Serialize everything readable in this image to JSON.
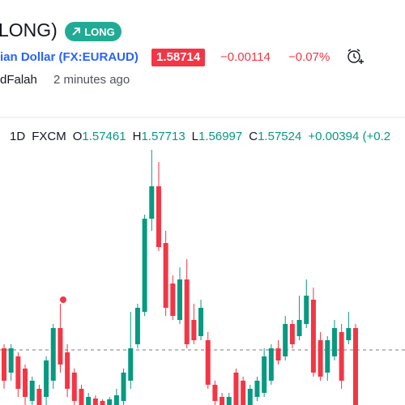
{
  "header": {
    "title": "LONG)",
    "badge": "LONG",
    "symbol": "ian Dollar (FX:EURAUD)",
    "price": 1.58714,
    "change": "−0.00114",
    "change_percent": "−0.07%",
    "author": "dFalah",
    "time": "2 minutes ago"
  },
  "chart_data": {
    "type": "candlestick",
    "interval": "1D",
    "source": "FXCM",
    "legend": {
      "o_label": "O",
      "o": 1.57461,
      "h_label": "H",
      "h": 1.57713,
      "l_label": "L",
      "l": 1.56997,
      "c_label": "C",
      "c": 1.57524,
      "change": "+0.00394 (+0.2"
    },
    "up_color": "#089981",
    "down_color": "#f23645",
    "ylim": [
      1.57354,
      1.63654
    ],
    "open": [
      1.58754,
      1.58154,
      1.58554,
      1.58254,
      1.57454,
      1.57754,
      1.57554,
      1.57954,
      1.59254,
      1.58654,
      1.58154,
      1.57754,
      1.57354,
      1.57514,
      1.57454,
      1.57354,
      1.57354,
      1.57454,
      1.57954,
      1.58854,
      1.59654,
      1.61954,
      1.62754,
      1.61354,
      1.60354,
      1.59454,
      1.60454,
      1.59454,
      1.59054,
      1.58954,
      1.57854,
      1.57554,
      1.57354,
      1.58154,
      1.57954,
      1.57354,
      1.57554,
      1.57654,
      1.57954,
      1.58754,
      1.58554,
      1.59354,
      1.59054,
      1.59354,
      1.59954,
      1.58954,
      1.58154,
      1.58554,
      1.59154,
      1.58954,
      1.59254
    ],
    "high": [
      1.58854,
      1.58854,
      1.58654,
      1.58354,
      1.58054,
      1.57854,
      1.58554,
      1.59354,
      1.59854,
      1.58854,
      1.58254,
      1.57854,
      1.57654,
      1.57594,
      1.57494,
      1.57554,
      1.57754,
      1.58254,
      1.59654,
      1.59854,
      1.62054,
      1.63654,
      1.63354,
      1.61654,
      1.60554,
      1.60754,
      1.60954,
      1.59854,
      1.59954,
      1.59154,
      1.57954,
      1.57654,
      1.57654,
      1.58254,
      1.58054,
      1.57854,
      1.58054,
      1.58754,
      1.58854,
      1.58954,
      1.59554,
      1.59454,
      1.60054,
      1.60454,
      1.60254,
      1.59154,
      1.59054,
      1.59454,
      1.59354,
      1.59654,
      1.59354
    ],
    "low": [
      1.57754,
      1.57954,
      1.57554,
      1.57354,
      1.57354,
      1.57354,
      1.57354,
      1.57754,
      1.58154,
      1.57554,
      1.57354,
      1.57354,
      1.57354,
      1.57354,
      1.57354,
      1.57354,
      1.57354,
      1.57354,
      1.57754,
      1.58754,
      1.59554,
      1.61654,
      1.61154,
      1.59554,
      1.59454,
      1.59354,
      1.58754,
      1.58854,
      1.58954,
      1.57754,
      1.57354,
      1.57354,
      1.57354,
      1.57354,
      1.57354,
      1.57354,
      1.57454,
      1.57554,
      1.57854,
      1.58354,
      1.58454,
      1.58754,
      1.58954,
      1.59254,
      1.58054,
      1.57954,
      1.57954,
      1.58454,
      1.57754,
      1.58854,
      1.57354
    ],
    "close": [
      1.57954,
      1.58754,
      1.57754,
      1.57554,
      1.57954,
      1.57354,
      1.58454,
      1.59254,
      1.58354,
      1.57754,
      1.57454,
      1.57354,
      1.57554,
      1.57354,
      1.57354,
      1.57494,
      1.57594,
      1.58154,
      1.58754,
      1.59754,
      1.61954,
      1.62754,
      1.61254,
      1.59754,
      1.59554,
      1.60454,
      1.58854,
      1.58954,
      1.59754,
      1.57854,
      1.57454,
      1.57354,
      1.57554,
      1.57354,
      1.57354,
      1.57754,
      1.57954,
      1.58554,
      1.58754,
      1.58454,
      1.59354,
      1.58854,
      1.59454,
      1.60054,
      1.58154,
      1.58054,
      1.58954,
      1.59254,
      1.57954,
      1.59254,
      1.57354
    ]
  }
}
